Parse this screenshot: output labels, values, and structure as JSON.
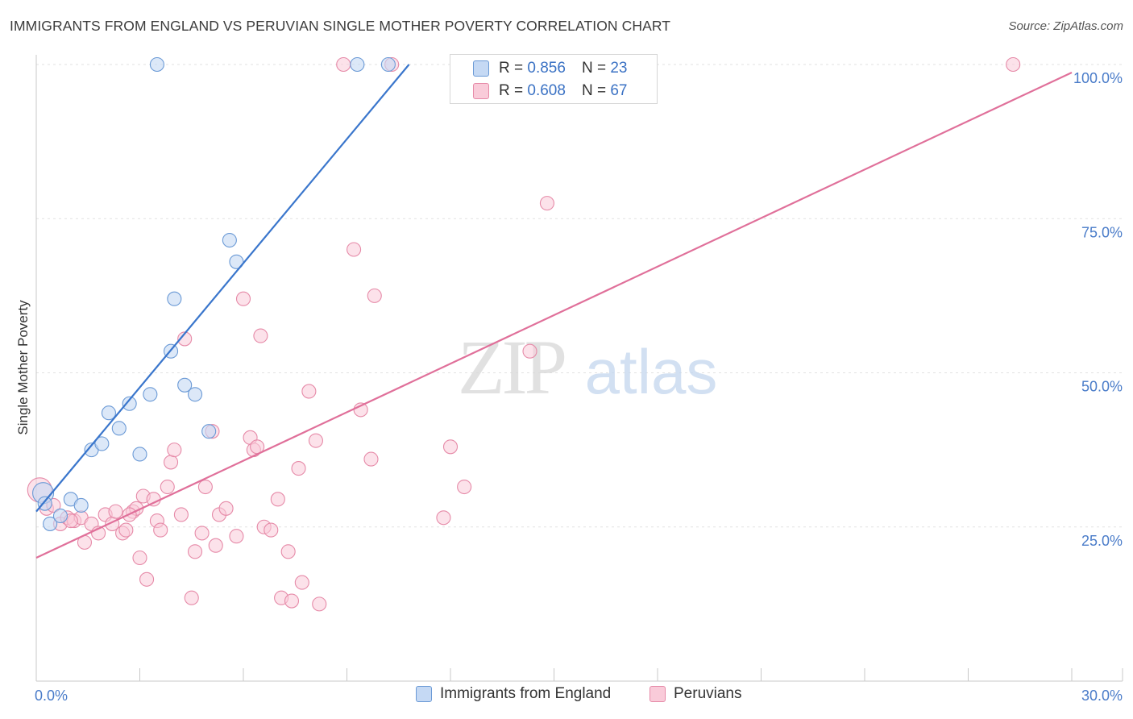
{
  "title": "IMMIGRANTS FROM ENGLAND VS PERUVIAN SINGLE MOTHER POVERTY CORRELATION CHART",
  "source": "Source: ZipAtlas.com",
  "watermark": {
    "zip": "ZIP",
    "atlas": "atlas"
  },
  "legend_stats": [
    {
      "r_label": "R =",
      "r_value": "0.856",
      "n_label": "N =",
      "n_value": "23"
    },
    {
      "r_label": "R =",
      "r_value": "0.608",
      "n_label": "N =",
      "n_value": "67"
    }
  ],
  "legend_bottom": [
    "Immigrants from England",
    "Peruvians"
  ],
  "colors": {
    "england_fill": "#c5d9f4",
    "england_stroke": "#6b9ad6",
    "england_line": "#3a76cc",
    "peru_fill": "#f9cbd9",
    "peru_stroke": "#e68aa8",
    "peru_line": "#e0709a",
    "tick_label": "#4a7cc9",
    "grid": "#e2e2e2"
  },
  "chart_data": {
    "type": "scatter",
    "title": "IMMIGRANTS FROM ENGLAND VS PERUVIAN SINGLE MOTHER POVERTY CORRELATION CHART",
    "xlabel": "",
    "ylabel": "Single Mother Poverty",
    "xlim": [
      0,
      30
    ],
    "ylim": [
      0,
      102
    ],
    "x_tick_labels": [
      "0.0%",
      "30.0%"
    ],
    "y_tick_values": [
      25,
      50,
      75,
      100
    ],
    "y_tick_labels": [
      "25.0%",
      "50.0%",
      "75.0%",
      "100.0%"
    ],
    "grid": true,
    "legend_position": "top-center",
    "series": [
      {
        "name": "Immigrants from England",
        "r": 0.856,
        "n": 23,
        "trend": {
          "x": [
            0.0,
            10.8
          ],
          "y": [
            27.5,
            100.0
          ]
        },
        "points": [
          [
            0.2,
            30.5
          ],
          [
            0.25,
            28.8
          ],
          [
            0.4,
            25.5
          ],
          [
            0.7,
            26.8
          ],
          [
            1.0,
            29.5
          ],
          [
            1.3,
            28.5
          ],
          [
            1.6,
            37.5
          ],
          [
            1.9,
            38.5
          ],
          [
            2.1,
            43.5
          ],
          [
            2.4,
            41.0
          ],
          [
            2.7,
            45.0
          ],
          [
            3.0,
            36.8
          ],
          [
            3.3,
            46.5
          ],
          [
            3.5,
            100.0
          ],
          [
            3.9,
            53.5
          ],
          [
            4.0,
            62.0
          ],
          [
            4.3,
            48.0
          ],
          [
            4.6,
            46.5
          ],
          [
            5.0,
            40.5
          ],
          [
            5.6,
            71.5
          ],
          [
            5.8,
            68.0
          ],
          [
            9.3,
            100.0
          ],
          [
            10.2,
            100.0
          ]
        ]
      },
      {
        "name": "Peruvians",
        "r": 0.608,
        "n": 67,
        "trend": {
          "x": [
            0.0,
            30.0
          ],
          "y": [
            20.0,
            98.7
          ]
        },
        "points": [
          [
            0.1,
            31.0
          ],
          [
            0.3,
            28.0
          ],
          [
            0.5,
            28.5
          ],
          [
            0.7,
            25.5
          ],
          [
            0.9,
            26.5
          ],
          [
            1.1,
            26.0
          ],
          [
            1.3,
            26.5
          ],
          [
            1.4,
            22.5
          ],
          [
            1.6,
            25.5
          ],
          [
            1.8,
            24.0
          ],
          [
            2.0,
            27.0
          ],
          [
            2.2,
            25.5
          ],
          [
            2.3,
            27.5
          ],
          [
            2.5,
            24.0
          ],
          [
            2.6,
            24.5
          ],
          [
            2.8,
            27.5
          ],
          [
            2.9,
            28.0
          ],
          [
            3.0,
            20.0
          ],
          [
            3.1,
            30.0
          ],
          [
            3.2,
            16.5
          ],
          [
            3.4,
            29.5
          ],
          [
            3.5,
            26.0
          ],
          [
            3.6,
            24.5
          ],
          [
            3.8,
            31.5
          ],
          [
            3.9,
            35.5
          ],
          [
            4.0,
            37.5
          ],
          [
            4.2,
            27.0
          ],
          [
            4.3,
            55.5
          ],
          [
            4.5,
            13.5
          ],
          [
            4.6,
            21.0
          ],
          [
            4.8,
            24.0
          ],
          [
            4.9,
            31.5
          ],
          [
            5.1,
            40.5
          ],
          [
            5.2,
            22.0
          ],
          [
            5.3,
            27.0
          ],
          [
            5.5,
            28.0
          ],
          [
            5.8,
            23.5
          ],
          [
            6.0,
            62.0
          ],
          [
            6.2,
            39.5
          ],
          [
            6.3,
            37.5
          ],
          [
            6.5,
            56.0
          ],
          [
            6.6,
            25.0
          ],
          [
            6.8,
            24.5
          ],
          [
            7.0,
            29.5
          ],
          [
            7.1,
            13.5
          ],
          [
            7.3,
            21.0
          ],
          [
            7.4,
            13.0
          ],
          [
            7.6,
            34.5
          ],
          [
            7.7,
            16.0
          ],
          [
            7.9,
            47.0
          ],
          [
            8.1,
            39.0
          ],
          [
            8.2,
            12.5
          ],
          [
            8.9,
            100.0
          ],
          [
            9.2,
            70.0
          ],
          [
            9.4,
            44.0
          ],
          [
            9.7,
            36.0
          ],
          [
            9.8,
            62.5
          ],
          [
            10.3,
            100.0
          ],
          [
            11.8,
            26.5
          ],
          [
            12.0,
            38.0
          ],
          [
            12.4,
            31.5
          ],
          [
            14.3,
            53.5
          ],
          [
            14.8,
            77.5
          ],
          [
            28.3,
            100.0
          ],
          [
            1.0,
            26.0
          ],
          [
            2.7,
            27.0
          ],
          [
            6.4,
            38.0
          ]
        ]
      }
    ]
  }
}
